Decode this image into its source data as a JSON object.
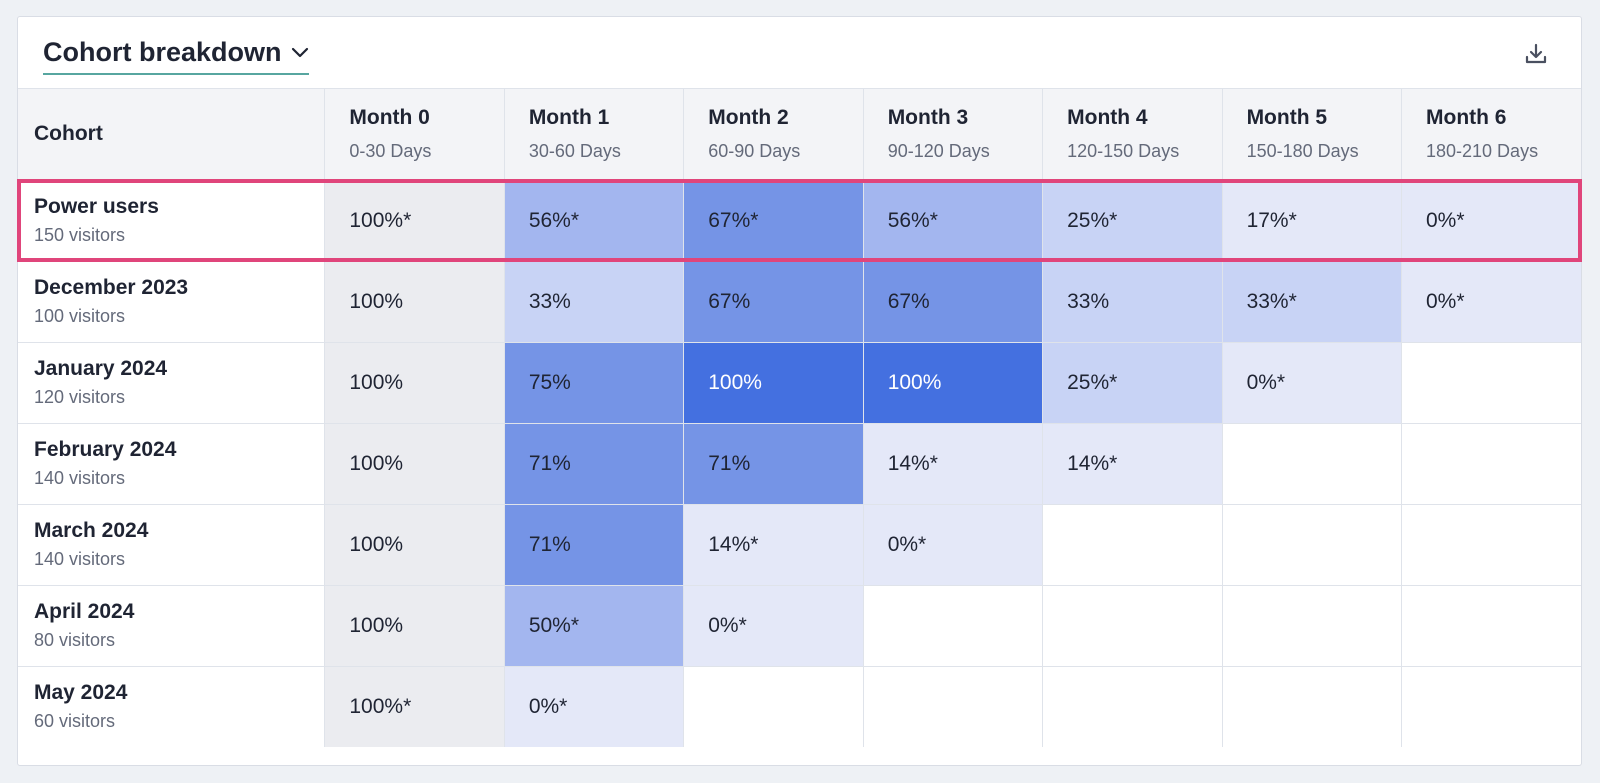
{
  "header": {
    "title": "Cohort breakdown",
    "title_icon": "chevron-down-icon",
    "download_icon": "download-icon"
  },
  "colors": {
    "accent_underline": "#57a6a0",
    "highlight_border": "#e0457b",
    "heat_strong": "#4470e0",
    "heat_light": "#e4e8f8"
  },
  "table": {
    "first_column_header": "Cohort",
    "columns": [
      {
        "name": "Month 0",
        "range": "0-30 Days"
      },
      {
        "name": "Month 1",
        "range": "30-60 Days"
      },
      {
        "name": "Month 2",
        "range": "60-90 Days"
      },
      {
        "name": "Month 3",
        "range": "90-120 Days"
      },
      {
        "name": "Month 4",
        "range": "120-150 Days"
      },
      {
        "name": "Month 5",
        "range": "150-180 Days"
      },
      {
        "name": "Month 6",
        "range": "180-210 Days"
      }
    ],
    "rows": [
      {
        "name": "Power users",
        "visitors": "150 visitors",
        "highlighted": true,
        "cells": [
          "100%*",
          "56%*",
          "67%*",
          "56%*",
          "25%*",
          "17%*",
          "0%*"
        ]
      },
      {
        "name": "December 2023",
        "visitors": "100 visitors",
        "highlighted": false,
        "cells": [
          "100%",
          "33%",
          "67%",
          "67%",
          "33%",
          "33%*",
          "0%*"
        ]
      },
      {
        "name": "January 2024",
        "visitors": "120 visitors",
        "highlighted": false,
        "cells": [
          "100%",
          "75%",
          "100%",
          "100%",
          "25%*",
          "0%*",
          ""
        ]
      },
      {
        "name": "February 2024",
        "visitors": "140 visitors",
        "highlighted": false,
        "cells": [
          "100%",
          "71%",
          "71%",
          "14%*",
          "14%*",
          "",
          ""
        ]
      },
      {
        "name": "March 2024",
        "visitors": "140 visitors",
        "highlighted": false,
        "cells": [
          "100%",
          "71%",
          "14%*",
          "0%*",
          "",
          "",
          ""
        ]
      },
      {
        "name": "April 2024",
        "visitors": "80 visitors",
        "highlighted": false,
        "cells": [
          "100%",
          "50%*",
          "0%*",
          "",
          "",
          "",
          ""
        ]
      },
      {
        "name": "May 2024",
        "visitors": "60 visitors",
        "highlighted": false,
        "cells": [
          "100%*",
          "0%*",
          "",
          "",
          "",
          "",
          ""
        ]
      }
    ]
  }
}
